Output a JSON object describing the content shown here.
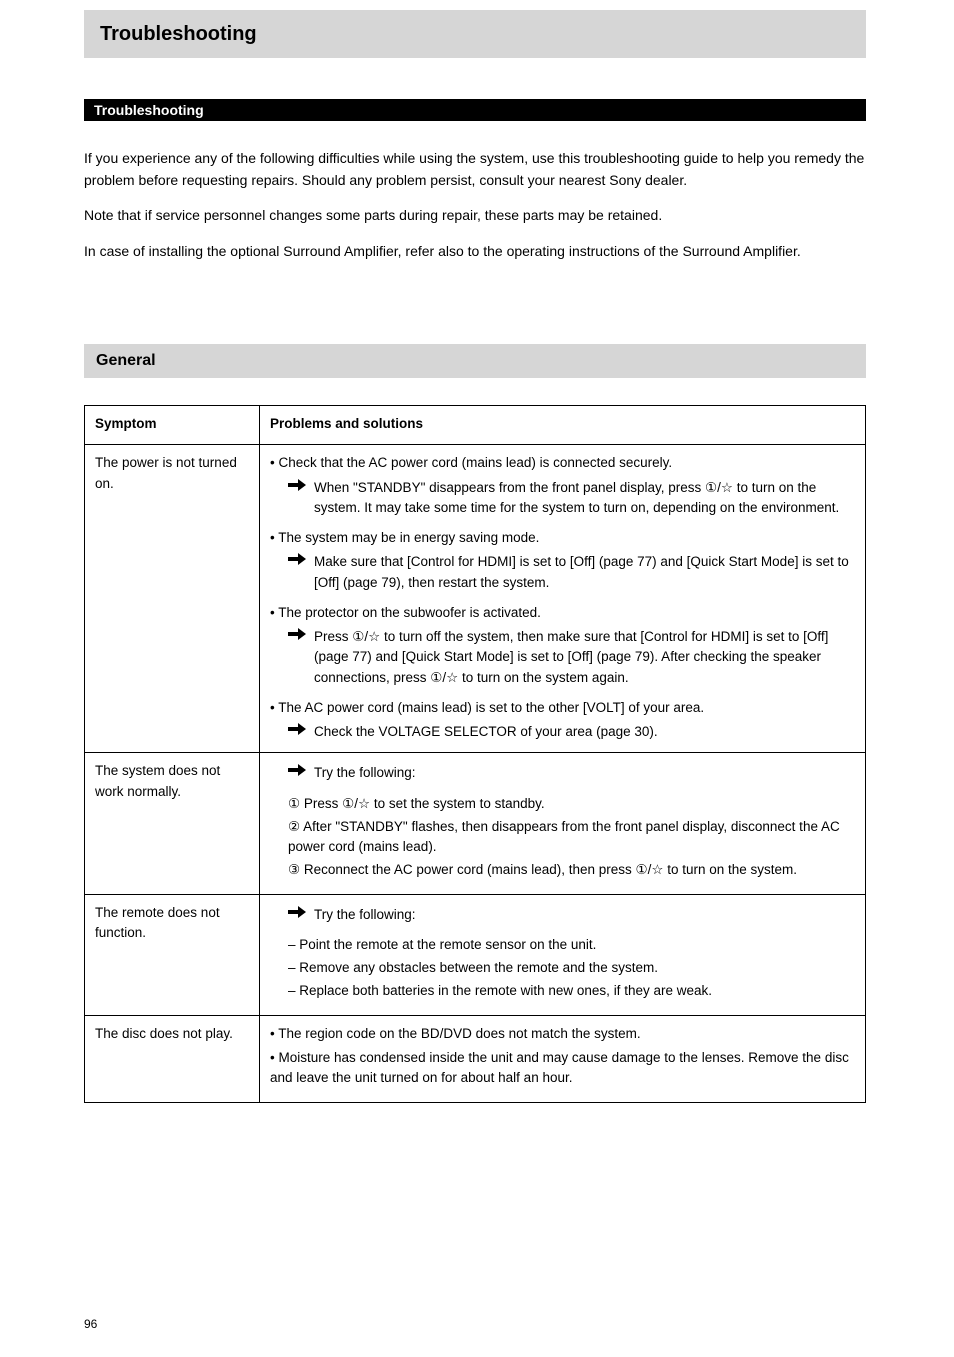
{
  "header": "Troubleshooting",
  "black_bar": "Troubleshooting",
  "intro_lines": [
    "If you experience any of the following difficulties while using the system, use this troubleshooting guide to help you remedy the problem before requesting repairs. Should any problem persist, consult your nearest Sony dealer.",
    "Note that if service personnel changes some parts during repair, these parts may be retained.",
    "In case of installing the optional Surround Amplifier, refer also to the operating instructions of the Surround Amplifier."
  ],
  "section_bar": "General",
  "table": {
    "head": [
      "Symptom",
      "Problems and solutions"
    ],
    "rows": [
      {
        "symptom": "The power is not turned on.",
        "groups": [
          {
            "cause": "Check that the AC power cord (mains lead) is connected securely.",
            "arrows": []
          },
          {
            "cause": null,
            "arrows": [
              "When \"STANDBY\" disappears from the front panel display, press ①/☆ to turn on the system. It may take some time for the system to turn on, depending on the environment."
            ]
          },
          {
            "cause": "The system may be in energy saving mode.",
            "arrows": [
              "Make sure that [Control for HDMI] is set to [Off] (page 77) and [Quick Start Mode] is set to [Off] (page 79), then restart the system."
            ]
          },
          {
            "cause": "The protector on the subwoofer is activated.",
            "arrows": [
              "Press ①/☆ to turn off the system, then make sure that [Control for HDMI] is set to [Off] (page 77) and [Quick Start Mode] is set to [Off] (page 79). After checking the speaker connections, press ①/☆ to turn on the system again."
            ]
          },
          {
            "cause": "The AC power cord (mains lead) is set to the other [VOLT] of your area.",
            "arrows": [
              "Check the VOLTAGE SELECTOR of your area (page 30)."
            ]
          }
        ]
      },
      {
        "symptom": "The system does not work normally.",
        "groups": [
          {
            "cause": null,
            "arrows": [
              "Try the following:"
            ]
          },
          {
            "cause": null,
            "plain": [
              "① Press ①/☆ to set the system to standby.",
              "② After \"STANDBY\" flashes, then disappears from the front panel display, disconnect the AC power cord (mains lead).",
              "③ Reconnect the AC power cord (mains lead), then press ①/☆ to turn on the system."
            ]
          }
        ]
      },
      {
        "symptom": "The remote does not function.",
        "groups": [
          {
            "cause": null,
            "arrows": [
              "Try the following:"
            ]
          },
          {
            "cause": null,
            "plain": [
              "– Point the remote at the remote sensor on the unit.",
              "– Remove any obstacles between the remote and the system.",
              "– Replace both batteries in the remote with new ones, if they are weak."
            ]
          }
        ]
      },
      {
        "symptom": "The disc does not play.",
        "groups": [
          {
            "cause": "The region code on the BD/DVD does not match the system.",
            "arrows": []
          },
          {
            "cause": "Moisture has condensed inside the unit and may cause damage to the lenses. Remove the disc and leave the unit turned on for about half an hour.",
            "arrows": []
          }
        ]
      }
    ]
  },
  "page_number": "96"
}
